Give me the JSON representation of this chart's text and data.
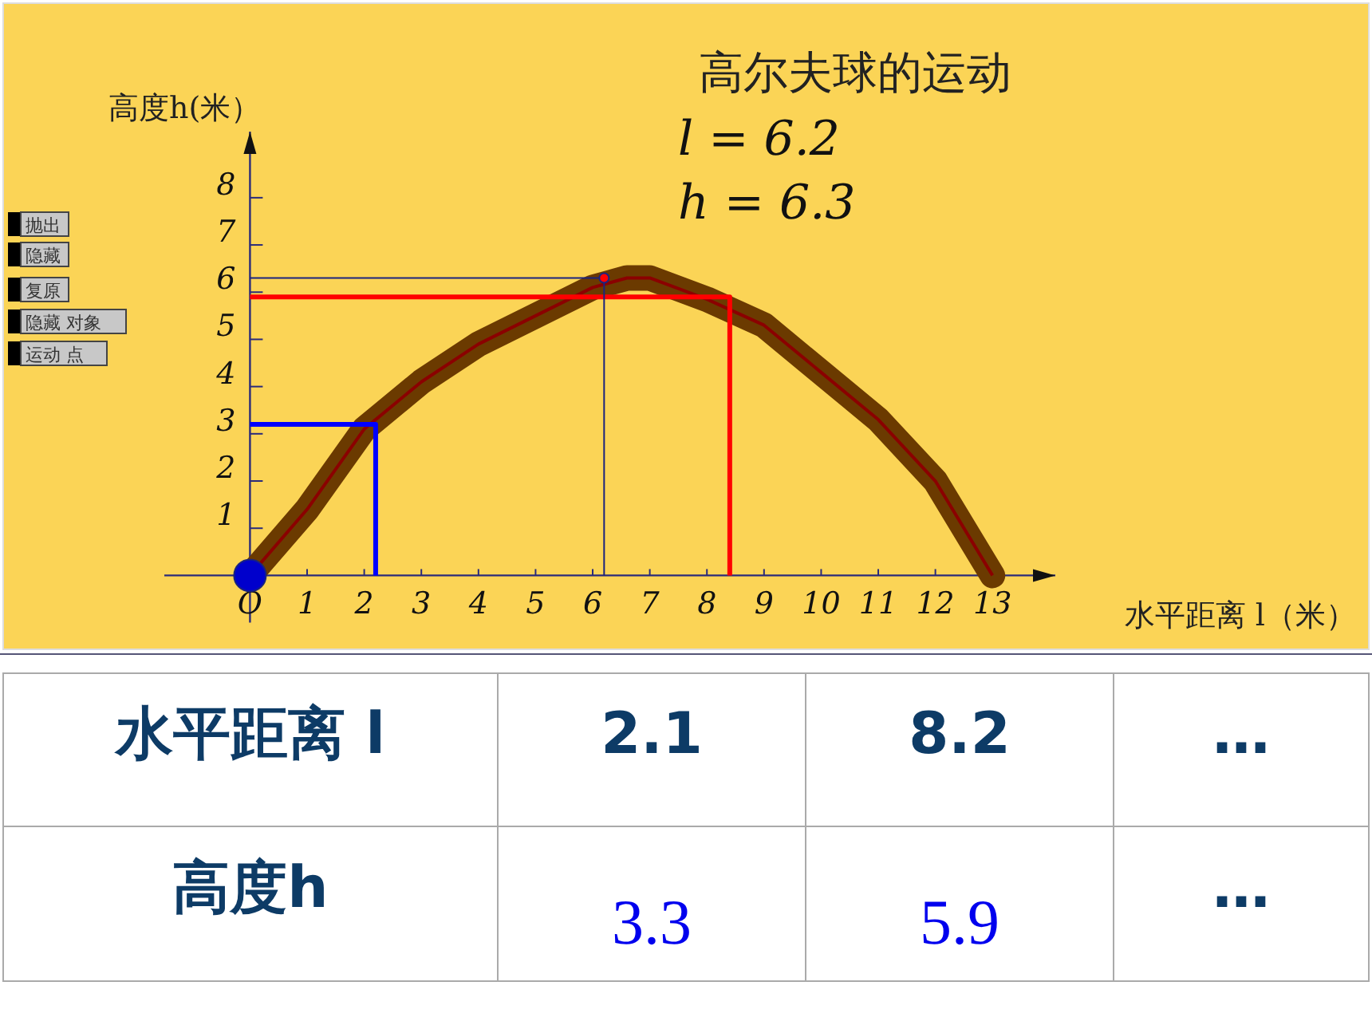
{
  "chart_data": [
    {
      "type": "line",
      "title": "高尔夫球的运动",
      "xlabel": "水平距离 l（米）",
      "ylabel": "高度h(米）",
      "xlim": [
        -1.5,
        14.1
      ],
      "ylim": [
        -1.0,
        9.4
      ],
      "xticks": [
        {
          "value": 0,
          "label": "O"
        },
        1,
        2,
        3,
        4,
        5,
        6,
        7,
        8,
        9,
        10,
        11,
        12,
        13
      ],
      "yticks": [
        1,
        2,
        3,
        4,
        5,
        6,
        7,
        8
      ],
      "grid": false,
      "series": [
        {
          "type": "line",
          "color": "#6b3a00",
          "x": [
            0,
            1,
            2,
            3,
            4,
            5,
            6,
            6.6,
            7,
            8,
            9,
            10,
            11,
            12,
            13
          ],
          "values": [
            0,
            1.4,
            3.1,
            4.1,
            4.9,
            5.5,
            6.1,
            6.3,
            6.3,
            5.85,
            5.3,
            4.3,
            3.3,
            2.0,
            0
          ]
        },
        {
          "type": "line",
          "color": "#0000ff",
          "x": [
            0,
            2.2,
            2.2
          ],
          "values": [
            3.2,
            3.2,
            0
          ]
        },
        {
          "type": "line",
          "color": "#ff0000",
          "x": [
            0,
            8.4,
            8.4
          ],
          "values": [
            5.9,
            5.9,
            0
          ]
        },
        {
          "type": "line",
          "color": "#1a237e",
          "x": [
            0,
            6.2,
            6.2
          ],
          "values": [
            6.3,
            6.3,
            0
          ]
        },
        {
          "type": "scatter",
          "color": "#ff0000",
          "marker": "circle",
          "x": [
            6.2
          ],
          "values": [
            6.3
          ]
        },
        {
          "type": "scatter",
          "color": "#0000cc",
          "marker": "circle",
          "x": [
            0
          ],
          "values": [
            0
          ]
        }
      ],
      "annotations": [
        "l = 6.2",
        "h = 6.3",
        "抛出",
        "隐藏",
        "复原",
        "隐藏 对象",
        "运动 点"
      ]
    },
    {
      "type": "other",
      "annotations": [
        "水平距离 l",
        "2.1",
        "8.2",
        "…",
        "高度h",
        "3.3",
        "5.9",
        "…"
      ]
    }
  ]
}
